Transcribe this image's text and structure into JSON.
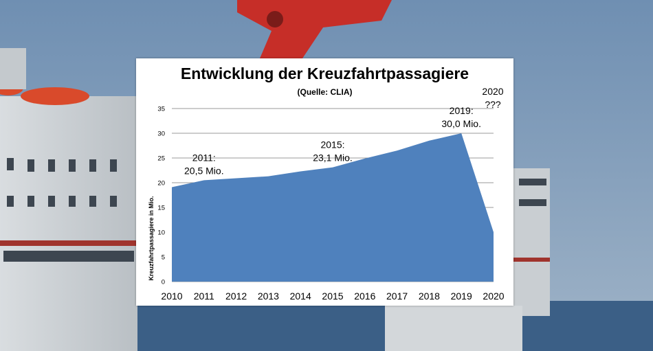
{
  "chart_data": {
    "type": "area",
    "title": "Entwicklung der Kreuzfahrtpassagiere",
    "subtitle": "(Quelle: CLIA)",
    "xlabel": "",
    "ylabel": "Kreuzfahrtpassagiere in Mio.",
    "categories": [
      "2010",
      "2011",
      "2012",
      "2013",
      "2014",
      "2015",
      "2016",
      "2017",
      "2018",
      "2019",
      "2020"
    ],
    "values": [
      19.1,
      20.5,
      20.9,
      21.3,
      22.3,
      23.1,
      24.9,
      26.5,
      28.5,
      30.0,
      10.0
    ],
    "ylim": [
      0,
      35
    ],
    "yticks": [
      0,
      5,
      10,
      15,
      20,
      25,
      30,
      35
    ],
    "grid": true,
    "color": "#4f81bd",
    "annotations": [
      {
        "category": "2011",
        "line1": "2011:",
        "line2": "20,5 Mio."
      },
      {
        "category": "2015",
        "line1": "2015:",
        "line2": "23,1 Mio."
      },
      {
        "category": "2019",
        "line1": "2019:",
        "line2": "30,0 Mio."
      },
      {
        "category": "2020",
        "line1": "2020",
        "line2": "???"
      }
    ]
  }
}
